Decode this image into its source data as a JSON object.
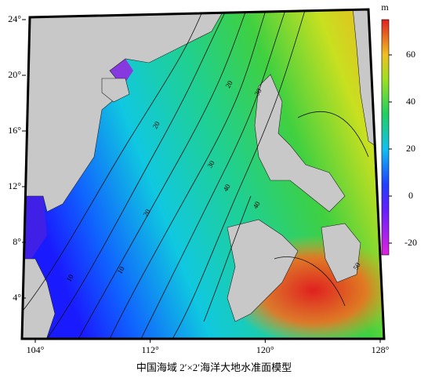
{
  "map": {
    "lon_ticks": [
      {
        "value": 104,
        "label": "104°"
      },
      {
        "value": 112,
        "label": "112°"
      },
      {
        "value": 120,
        "label": "120°"
      },
      {
        "value": 128,
        "label": "128°"
      }
    ],
    "lat_ticks": [
      {
        "value": 4,
        "label": "4°"
      },
      {
        "value": 8,
        "label": "8°"
      },
      {
        "value": 12,
        "label": "12°"
      },
      {
        "value": 16,
        "label": "16°"
      },
      {
        "value": 20,
        "label": "20°"
      },
      {
        "value": 24,
        "label": "24°"
      }
    ],
    "contour_labels": [
      "10",
      "20",
      "10",
      "20",
      "30",
      "40",
      "20",
      "30",
      "40",
      "50"
    ]
  },
  "colorbar": {
    "unit": "m",
    "lim": [
      -25,
      75
    ],
    "ticks": [
      -20,
      0,
      20,
      40,
      60
    ]
  },
  "caption": "中国海域 2′×2′海洋大地水准面模型"
}
